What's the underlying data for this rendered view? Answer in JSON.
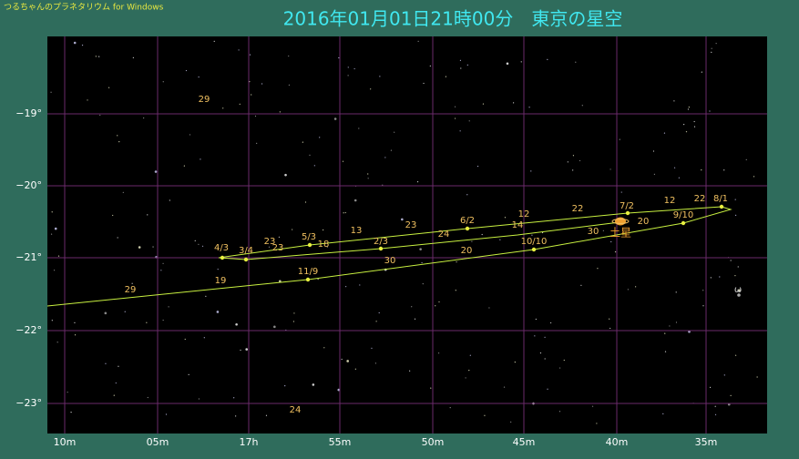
{
  "header": {
    "app_name": "つるちゃんのプラネタリウム for Windows",
    "title": "2016年01月01日21時00分　東京の星空"
  },
  "axis": {
    "y_labels": [
      "−19°",
      "−20°",
      "−21°",
      "−22°",
      "−23°"
    ],
    "x_labels": [
      "10m",
      "05m",
      "17h",
      "55m",
      "50m",
      "45m",
      "40m",
      "35m"
    ]
  },
  "path_labels": [
    "29",
    "19",
    "11/9",
    "30",
    "20",
    "10/10",
    "30",
    "20",
    "9/10",
    "22",
    "8/1",
    "12",
    "7/2",
    "22",
    "12",
    "14",
    "6/2",
    "24",
    "23",
    "13",
    "2/3",
    "5/3",
    "18",
    "23",
    "23",
    "3/4",
    "4/3"
  ],
  "star_labels": [
    "29",
    "24",
    "ω"
  ],
  "planet_label": "土星"
}
